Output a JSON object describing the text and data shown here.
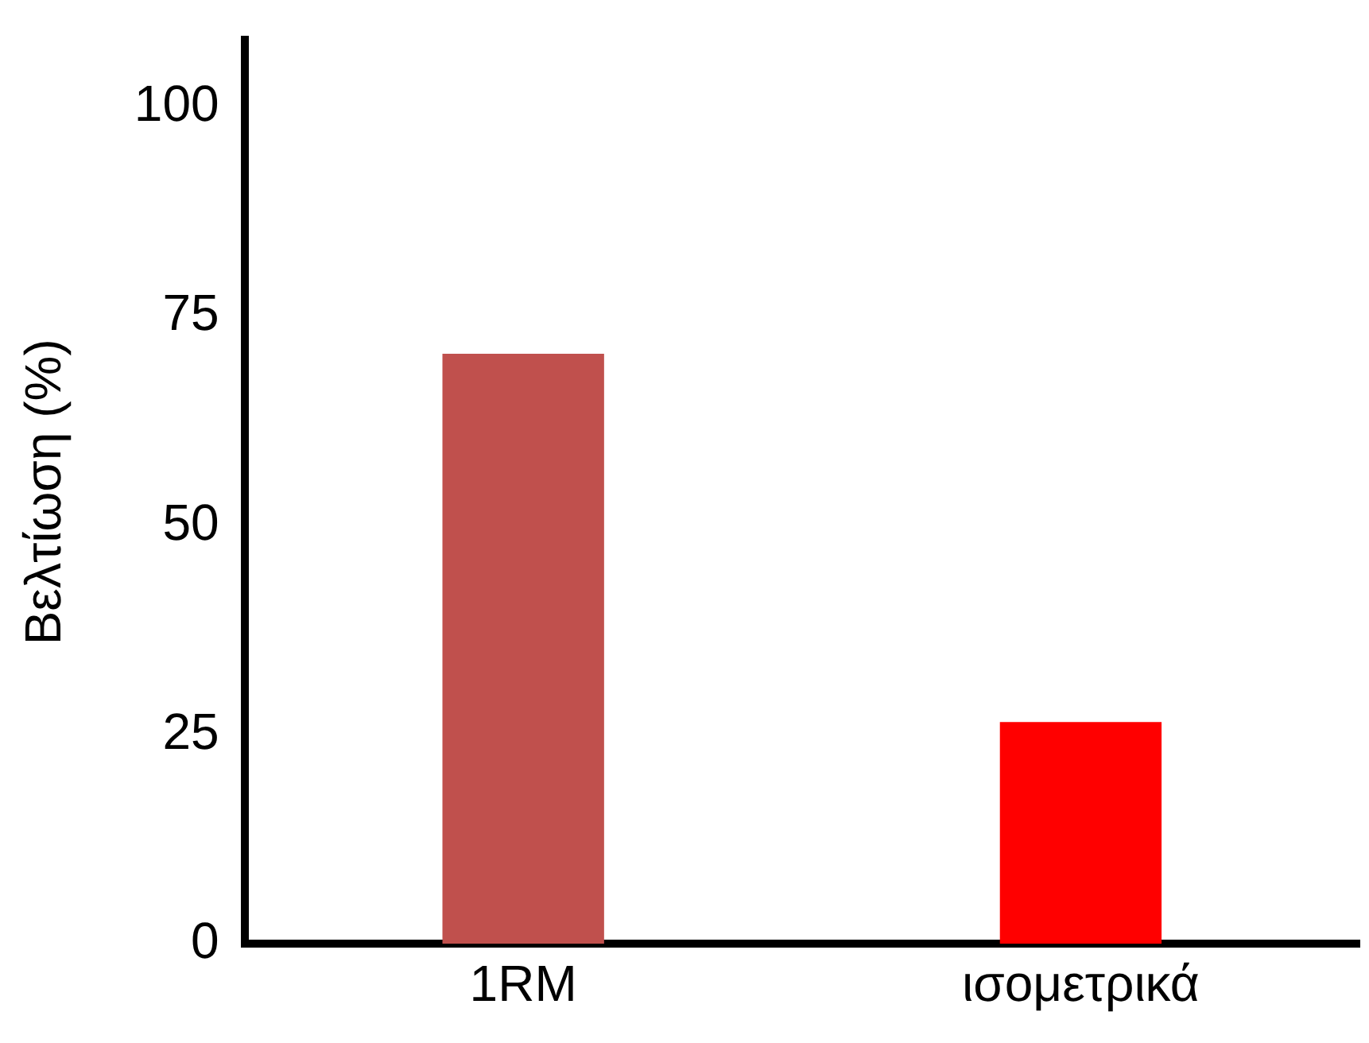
{
  "chart_data": {
    "type": "bar",
    "ylabel": "Βελτίωση (%)",
    "categories": [
      "1RM",
      "ισομετρικά"
    ],
    "values": [
      70.5,
      26.5
    ],
    "colors": [
      "#c0504d",
      "#ff0000"
    ],
    "ylim": [
      0,
      108
    ],
    "yticks": [
      0,
      25,
      50,
      75,
      100
    ],
    "grid": false,
    "legend": false
  }
}
